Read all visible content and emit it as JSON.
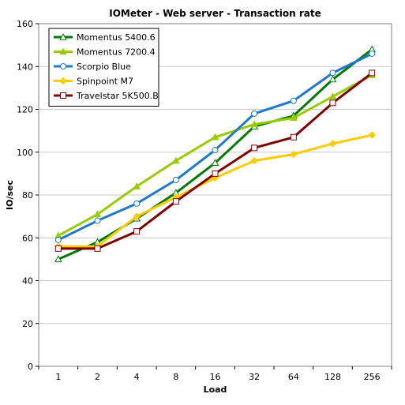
{
  "chart_data": {
    "type": "line",
    "title": "IOMeter - Web server - Transaction rate",
    "xlabel": "Load",
    "ylabel": "IO/sec",
    "categories": [
      "1",
      "2",
      "4",
      "8",
      "16",
      "32",
      "64",
      "128",
      "256"
    ],
    "ylim": [
      0,
      160
    ],
    "yticks": [
      0,
      20,
      40,
      60,
      80,
      100,
      120,
      140,
      160
    ],
    "grid": true,
    "legend_position": "top-left",
    "series": [
      {
        "name": "Momentus 5400.6",
        "color": "#007a00",
        "marker": "triangle-open",
        "values": [
          50,
          58,
          69,
          81,
          95,
          112,
          117,
          134,
          148
        ]
      },
      {
        "name": "Momentus 7200.4",
        "color": "#99cc00",
        "marker": "triangle-filled",
        "values": [
          61,
          71,
          84,
          96,
          107,
          113,
          116,
          126,
          136
        ]
      },
      {
        "name": "Scorpio Blue",
        "color": "#1f78d0",
        "marker": "circle-open",
        "values": [
          59,
          68,
          76,
          87,
          101,
          118,
          124,
          137,
          146
        ]
      },
      {
        "name": "Spinpoint M7",
        "color": "#ffcc00",
        "marker": "diamond-filled",
        "values": [
          56,
          56,
          70,
          79,
          88,
          96,
          99,
          104,
          108
        ]
      },
      {
        "name": "Travelstar 5K500.B",
        "color": "#800000",
        "marker": "square-open",
        "values": [
          55,
          55,
          63,
          77,
          90,
          102,
          107,
          123,
          137
        ]
      }
    ]
  }
}
